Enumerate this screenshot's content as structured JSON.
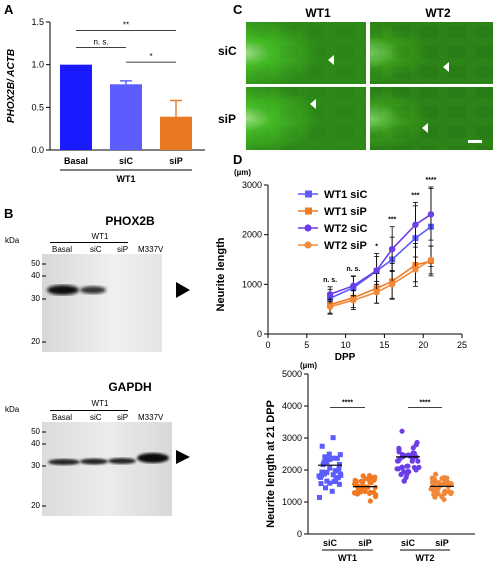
{
  "panels": {
    "A": "A",
    "B": "B",
    "C": "C",
    "D": "D"
  },
  "colors": {
    "basal": "#1a1aff",
    "siC_bar": "#5c5cff",
    "siP_bar": "#e87722",
    "wt1_siC": "#5b5bff",
    "wt1_siP": "#f07a22",
    "wt2_siC": "#6b3ee8",
    "wt2_siP": "#f08a3a",
    "micro_bg": "#2f8a18"
  },
  "chart_data": [
    {
      "type": "bar",
      "panel": "A",
      "ylabel": "PHOX2B/ ACTB",
      "categories": [
        "Basal",
        "siC",
        "siP"
      ],
      "group_label": "WT1",
      "values": [
        1.0,
        0.77,
        0.39
      ],
      "errors": [
        0.0,
        0.04,
        0.19
      ],
      "ylim": [
        0,
        1.5
      ],
      "yticks": [
        "0.0",
        "0.5",
        "1.0",
        "1.5"
      ],
      "significance": [
        {
          "pair": [
            "Basal",
            "siC"
          ],
          "label": "n. s."
        },
        {
          "pair": [
            "Basal",
            "siP"
          ],
          "label": "**"
        },
        {
          "pair": [
            "siC",
            "siP"
          ],
          "label": "*"
        }
      ]
    },
    {
      "type": "line",
      "panel": "D-top",
      "xlabel": "DPP",
      "ylabel": "Neurite length",
      "yunit": "(µm)",
      "xlim": [
        0,
        25
      ],
      "ylim": [
        0,
        3000
      ],
      "xticks": [
        "0",
        "5",
        "10",
        "15",
        "20",
        "25"
      ],
      "yticks": [
        "0",
        "1000",
        "2000",
        "3000"
      ],
      "x": [
        8,
        11,
        14,
        16,
        19,
        21
      ],
      "series": [
        {
          "name": "WT1 siC",
          "marker": "square",
          "values": [
            720,
            930,
            1270,
            1500,
            1930,
            2160
          ],
          "errors": [
            180,
            230,
            350,
            450,
            650,
            800
          ]
        },
        {
          "name": "WT1 siP",
          "marker": "square",
          "values": [
            590,
            730,
            920,
            1060,
            1390,
            1470
          ],
          "errors": [
            170,
            200,
            300,
            360,
            430,
            300
          ]
        },
        {
          "name": "WT2 siC",
          "marker": "circle",
          "values": [
            800,
            970,
            1280,
            1710,
            2200,
            2410
          ],
          "errors": [
            150,
            200,
            280,
            450,
            450,
            520
          ]
        },
        {
          "name": "WT2 siP",
          "marker": "circle",
          "values": [
            550,
            680,
            840,
            1000,
            1300,
            1490
          ],
          "errors": [
            150,
            190,
            220,
            280,
            250,
            280
          ]
        }
      ],
      "significance": [
        {
          "x": 8,
          "label": "n. s."
        },
        {
          "x": 11,
          "label": "n. s."
        },
        {
          "x": 14,
          "label": "*"
        },
        {
          "x": 16,
          "label": "***"
        },
        {
          "x": 19,
          "label": "***"
        },
        {
          "x": 21,
          "label": "****"
        }
      ]
    },
    {
      "type": "scatter",
      "panel": "D-bottom",
      "ylabel": "Neurite length at  21 DPP",
      "yunit": "(µm)",
      "ylim": [
        0,
        5000
      ],
      "yticks": [
        "0",
        "1000",
        "2000",
        "3000",
        "4000",
        "5000"
      ],
      "categories": [
        "siC",
        "siP",
        "siC",
        "siP"
      ],
      "groups": [
        "WT1",
        "WT2"
      ],
      "means": [
        2150,
        1480,
        2410,
        1490
      ],
      "significance": [
        {
          "pair": [
            "WT1 siC",
            "WT1 siP"
          ],
          "label": "****"
        },
        {
          "pair": [
            "WT2 siC",
            "WT2 siP"
          ],
          "label": "****"
        }
      ]
    }
  ],
  "blots": {
    "phox2b": {
      "title": "PHOX2B",
      "group": "WT1",
      "lanes": [
        "Basal",
        "siC",
        "siP",
        "M337V"
      ],
      "kda_label": "kDa",
      "markers": [
        "50",
        "40",
        "30",
        "20"
      ]
    },
    "gapdh": {
      "title": "GAPDH",
      "group": "WT1",
      "lanes": [
        "Basal",
        "siC",
        "siP",
        "M337V"
      ],
      "kda_label": "kDa",
      "markers": [
        "50",
        "40",
        "30",
        "20"
      ]
    }
  },
  "micrographs": {
    "columns": [
      "WT1",
      "WT2"
    ],
    "rows": [
      "siC",
      "siP"
    ]
  }
}
